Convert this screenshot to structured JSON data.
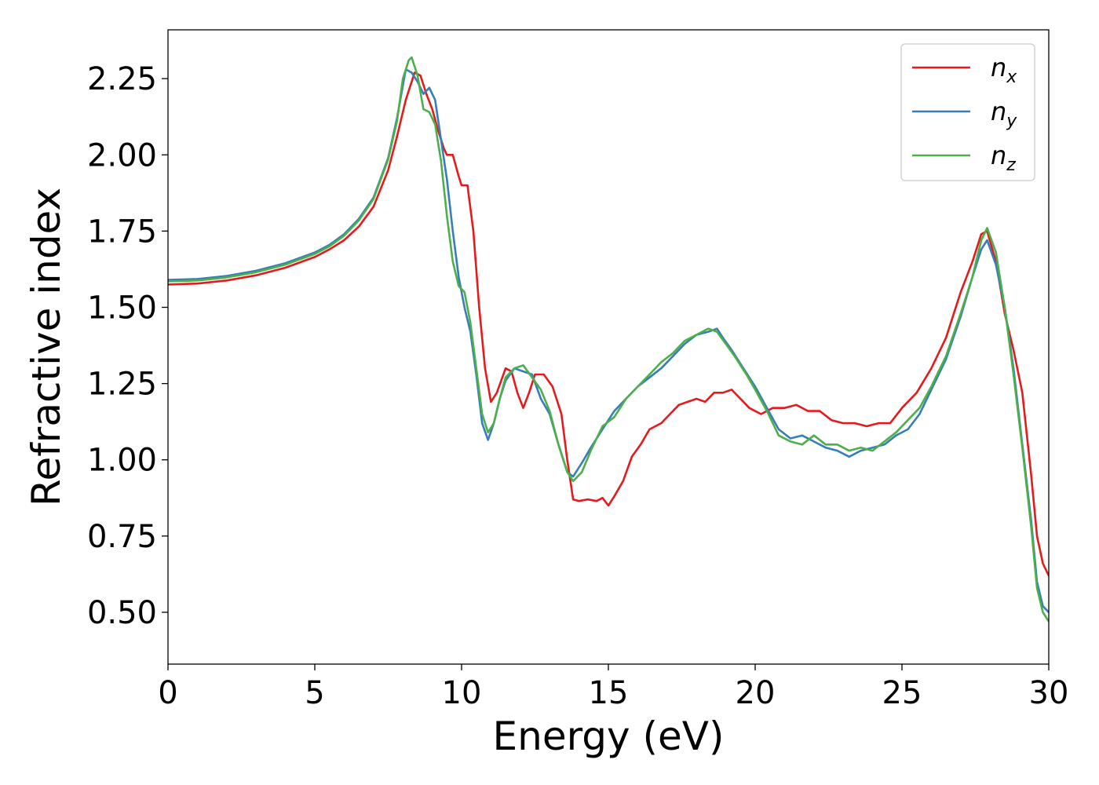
{
  "chart_data": {
    "type": "line",
    "title": "",
    "xlabel": "Energy (eV)",
    "ylabel": "Refractive index",
    "xlim": [
      0,
      30
    ],
    "ylim": [
      0.33,
      2.41
    ],
    "xticks": [
      0,
      5,
      10,
      15,
      20,
      25,
      30
    ],
    "yticks": [
      0.5,
      0.75,
      1.0,
      1.25,
      1.5,
      1.75,
      2.0,
      2.25
    ],
    "grid": false,
    "legend_position": "top-right",
    "series": [
      {
        "name": "n",
        "subscript": "x",
        "color": "#e41a1c",
        "points": [
          [
            0,
            1.575
          ],
          [
            1,
            1.578
          ],
          [
            2,
            1.588
          ],
          [
            3,
            1.605
          ],
          [
            4,
            1.63
          ],
          [
            5,
            1.665
          ],
          [
            5.5,
            1.69
          ],
          [
            6,
            1.72
          ],
          [
            6.5,
            1.765
          ],
          [
            7,
            1.83
          ],
          [
            7.5,
            1.95
          ],
          [
            7.8,
            2.06
          ],
          [
            8.1,
            2.18
          ],
          [
            8.4,
            2.27
          ],
          [
            8.6,
            2.26
          ],
          [
            8.8,
            2.2
          ],
          [
            9.0,
            2.15
          ],
          [
            9.2,
            2.08
          ],
          [
            9.4,
            2.02
          ],
          [
            9.5,
            2.0
          ],
          [
            9.7,
            2.0
          ],
          [
            9.9,
            1.93
          ],
          [
            10.0,
            1.9
          ],
          [
            10.2,
            1.9
          ],
          [
            10.4,
            1.75
          ],
          [
            10.6,
            1.5
          ],
          [
            10.8,
            1.3
          ],
          [
            11.0,
            1.19
          ],
          [
            11.2,
            1.22
          ],
          [
            11.5,
            1.3
          ],
          [
            11.7,
            1.29
          ],
          [
            11.9,
            1.22
          ],
          [
            12.1,
            1.17
          ],
          [
            12.3,
            1.22
          ],
          [
            12.5,
            1.28
          ],
          [
            12.8,
            1.28
          ],
          [
            13.1,
            1.24
          ],
          [
            13.4,
            1.15
          ],
          [
            13.6,
            1.0
          ],
          [
            13.8,
            0.87
          ],
          [
            14.0,
            0.865
          ],
          [
            14.3,
            0.87
          ],
          [
            14.6,
            0.865
          ],
          [
            14.8,
            0.875
          ],
          [
            15.0,
            0.85
          ],
          [
            15.2,
            0.88
          ],
          [
            15.5,
            0.93
          ],
          [
            15.8,
            1.01
          ],
          [
            16.1,
            1.05
          ],
          [
            16.4,
            1.1
          ],
          [
            16.8,
            1.12
          ],
          [
            17.1,
            1.15
          ],
          [
            17.4,
            1.18
          ],
          [
            17.7,
            1.19
          ],
          [
            18.0,
            1.2
          ],
          [
            18.3,
            1.19
          ],
          [
            18.6,
            1.22
          ],
          [
            18.9,
            1.22
          ],
          [
            19.2,
            1.23
          ],
          [
            19.5,
            1.2
          ],
          [
            19.8,
            1.17
          ],
          [
            20.2,
            1.15
          ],
          [
            20.6,
            1.17
          ],
          [
            21.0,
            1.17
          ],
          [
            21.4,
            1.18
          ],
          [
            21.8,
            1.16
          ],
          [
            22.2,
            1.16
          ],
          [
            22.6,
            1.13
          ],
          [
            23.0,
            1.12
          ],
          [
            23.4,
            1.12
          ],
          [
            23.8,
            1.11
          ],
          [
            24.2,
            1.12
          ],
          [
            24.6,
            1.12
          ],
          [
            25.0,
            1.17
          ],
          [
            25.5,
            1.22
          ],
          [
            26.0,
            1.3
          ],
          [
            26.5,
            1.4
          ],
          [
            27.0,
            1.55
          ],
          [
            27.4,
            1.65
          ],
          [
            27.7,
            1.74
          ],
          [
            27.9,
            1.75
          ],
          [
            28.2,
            1.65
          ],
          [
            28.5,
            1.48
          ],
          [
            28.8,
            1.36
          ],
          [
            29.1,
            1.22
          ],
          [
            29.4,
            0.95
          ],
          [
            29.6,
            0.75
          ],
          [
            29.8,
            0.66
          ],
          [
            30.0,
            0.62
          ]
        ]
      },
      {
        "name": "n",
        "subscript": "y",
        "color": "#377eb8",
        "points": [
          [
            0,
            1.59
          ],
          [
            1,
            1.593
          ],
          [
            2,
            1.603
          ],
          [
            3,
            1.62
          ],
          [
            4,
            1.645
          ],
          [
            5,
            1.68
          ],
          [
            5.5,
            1.705
          ],
          [
            6,
            1.74
          ],
          [
            6.5,
            1.79
          ],
          [
            7,
            1.86
          ],
          [
            7.5,
            1.99
          ],
          [
            7.8,
            2.12
          ],
          [
            8.1,
            2.28
          ],
          [
            8.3,
            2.27
          ],
          [
            8.5,
            2.24
          ],
          [
            8.7,
            2.2
          ],
          [
            8.9,
            2.22
          ],
          [
            9.1,
            2.18
          ],
          [
            9.3,
            2.05
          ],
          [
            9.5,
            1.92
          ],
          [
            9.7,
            1.75
          ],
          [
            9.9,
            1.6
          ],
          [
            10.1,
            1.5
          ],
          [
            10.3,
            1.42
          ],
          [
            10.5,
            1.28
          ],
          [
            10.7,
            1.12
          ],
          [
            10.9,
            1.065
          ],
          [
            11.1,
            1.12
          ],
          [
            11.3,
            1.2
          ],
          [
            11.5,
            1.26
          ],
          [
            11.8,
            1.3
          ],
          [
            12.1,
            1.29
          ],
          [
            12.4,
            1.28
          ],
          [
            12.7,
            1.2
          ],
          [
            13.0,
            1.15
          ],
          [
            13.3,
            1.05
          ],
          [
            13.6,
            0.96
          ],
          [
            13.8,
            0.945
          ],
          [
            14.1,
            0.99
          ],
          [
            14.4,
            1.04
          ],
          [
            14.8,
            1.1
          ],
          [
            15.2,
            1.16
          ],
          [
            15.6,
            1.2
          ],
          [
            16.0,
            1.24
          ],
          [
            16.4,
            1.27
          ],
          [
            16.8,
            1.3
          ],
          [
            17.2,
            1.34
          ],
          [
            17.6,
            1.38
          ],
          [
            18.0,
            1.41
          ],
          [
            18.4,
            1.42
          ],
          [
            18.7,
            1.43
          ],
          [
            18.9,
            1.4
          ],
          [
            19.2,
            1.36
          ],
          [
            19.6,
            1.3
          ],
          [
            20.0,
            1.24
          ],
          [
            20.4,
            1.17
          ],
          [
            20.8,
            1.1
          ],
          [
            21.2,
            1.07
          ],
          [
            21.6,
            1.08
          ],
          [
            22.0,
            1.06
          ],
          [
            22.4,
            1.04
          ],
          [
            22.8,
            1.03
          ],
          [
            23.2,
            1.01
          ],
          [
            23.6,
            1.03
          ],
          [
            24.0,
            1.04
          ],
          [
            24.4,
            1.05
          ],
          [
            24.8,
            1.08
          ],
          [
            25.2,
            1.1
          ],
          [
            25.6,
            1.15
          ],
          [
            26.0,
            1.23
          ],
          [
            26.5,
            1.33
          ],
          [
            27.0,
            1.47
          ],
          [
            27.4,
            1.6
          ],
          [
            27.7,
            1.69
          ],
          [
            27.9,
            1.72
          ],
          [
            28.2,
            1.64
          ],
          [
            28.5,
            1.5
          ],
          [
            28.8,
            1.3
          ],
          [
            29.1,
            1.05
          ],
          [
            29.4,
            0.8
          ],
          [
            29.6,
            0.6
          ],
          [
            29.8,
            0.52
          ],
          [
            30.0,
            0.5
          ]
        ]
      },
      {
        "name": "n",
        "subscript": "z",
        "color": "#4daf4a",
        "points": [
          [
            0,
            1.585
          ],
          [
            1,
            1.588
          ],
          [
            2,
            1.598
          ],
          [
            3,
            1.615
          ],
          [
            4,
            1.64
          ],
          [
            5,
            1.675
          ],
          [
            5.5,
            1.7
          ],
          [
            6,
            1.735
          ],
          [
            6.5,
            1.785
          ],
          [
            7,
            1.855
          ],
          [
            7.5,
            1.985
          ],
          [
            7.8,
            2.11
          ],
          [
            8.0,
            2.25
          ],
          [
            8.2,
            2.31
          ],
          [
            8.3,
            2.32
          ],
          [
            8.5,
            2.26
          ],
          [
            8.7,
            2.15
          ],
          [
            8.9,
            2.14
          ],
          [
            9.1,
            2.1
          ],
          [
            9.3,
            1.98
          ],
          [
            9.5,
            1.8
          ],
          [
            9.7,
            1.65
          ],
          [
            9.9,
            1.57
          ],
          [
            10.1,
            1.55
          ],
          [
            10.3,
            1.45
          ],
          [
            10.5,
            1.3
          ],
          [
            10.7,
            1.15
          ],
          [
            10.9,
            1.09
          ],
          [
            11.1,
            1.12
          ],
          [
            11.3,
            1.2
          ],
          [
            11.5,
            1.27
          ],
          [
            11.8,
            1.3
          ],
          [
            12.1,
            1.31
          ],
          [
            12.4,
            1.27
          ],
          [
            12.7,
            1.23
          ],
          [
            13.0,
            1.16
          ],
          [
            13.3,
            1.05
          ],
          [
            13.6,
            0.96
          ],
          [
            13.8,
            0.93
          ],
          [
            14.1,
            0.96
          ],
          [
            14.4,
            1.03
          ],
          [
            14.8,
            1.11
          ],
          [
            15.2,
            1.14
          ],
          [
            15.6,
            1.2
          ],
          [
            16.0,
            1.24
          ],
          [
            16.4,
            1.28
          ],
          [
            16.8,
            1.32
          ],
          [
            17.2,
            1.35
          ],
          [
            17.6,
            1.39
          ],
          [
            18.0,
            1.41
          ],
          [
            18.4,
            1.43
          ],
          [
            18.7,
            1.42
          ],
          [
            19.0,
            1.38
          ],
          [
            19.3,
            1.34
          ],
          [
            19.7,
            1.28
          ],
          [
            20.0,
            1.23
          ],
          [
            20.4,
            1.16
          ],
          [
            20.8,
            1.08
          ],
          [
            21.2,
            1.06
          ],
          [
            21.6,
            1.05
          ],
          [
            22.0,
            1.08
          ],
          [
            22.4,
            1.05
          ],
          [
            22.8,
            1.05
          ],
          [
            23.2,
            1.03
          ],
          [
            23.6,
            1.04
          ],
          [
            24.0,
            1.03
          ],
          [
            24.4,
            1.06
          ],
          [
            24.8,
            1.09
          ],
          [
            25.2,
            1.13
          ],
          [
            25.6,
            1.17
          ],
          [
            26.0,
            1.24
          ],
          [
            26.5,
            1.34
          ],
          [
            27.0,
            1.48
          ],
          [
            27.4,
            1.6
          ],
          [
            27.7,
            1.72
          ],
          [
            27.9,
            1.76
          ],
          [
            28.2,
            1.68
          ],
          [
            28.5,
            1.5
          ],
          [
            28.8,
            1.28
          ],
          [
            29.1,
            1.04
          ],
          [
            29.4,
            0.78
          ],
          [
            29.6,
            0.58
          ],
          [
            29.8,
            0.5
          ],
          [
            30.0,
            0.47
          ]
        ]
      }
    ]
  }
}
